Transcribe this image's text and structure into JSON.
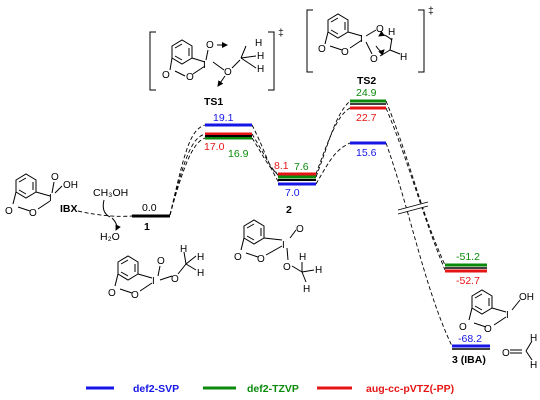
{
  "colors": {
    "svp": "#1515e6",
    "tzvp": "#0a8a0a",
    "aug": "#e61515",
    "black": "#000000"
  },
  "legend": [
    {
      "name": "def2-SVP",
      "color": "#1515e6"
    },
    {
      "name": "def2-TZVP",
      "color": "#0a8a0a"
    },
    {
      "name": "aug-cc-pVTZ(-PP)",
      "color": "#e61515"
    }
  ],
  "labels": {
    "reactant_ibx": "IBX",
    "methanol": "CH₃OH",
    "water": "H₂O",
    "stationary_1": "1",
    "stationary_2": "2",
    "stationary_3": "3 (IBA)",
    "ts1": "TS1",
    "ts2": "TS2",
    "double_dagger": "‡"
  },
  "energies": {
    "reactant": "0.0",
    "ts1_svp": "19.1",
    "ts1_tzvp": "16.9",
    "ts1_aug": "17.0",
    "int2_svp": "7.0",
    "int2_tzvp": "7.6",
    "int2_aug": "8.1",
    "ts2_svp": "15.6",
    "ts2_tzvp": "24.9",
    "ts2_aug": "22.7",
    "int_svp": "-68.2",
    "int_tzvp": "-51.2",
    "int_aug": "-52.7"
  },
  "atoms": {
    "O": "O",
    "I": "I",
    "C": "C",
    "H": "H",
    "OH": "OH",
    "OH_label": "OH"
  }
}
